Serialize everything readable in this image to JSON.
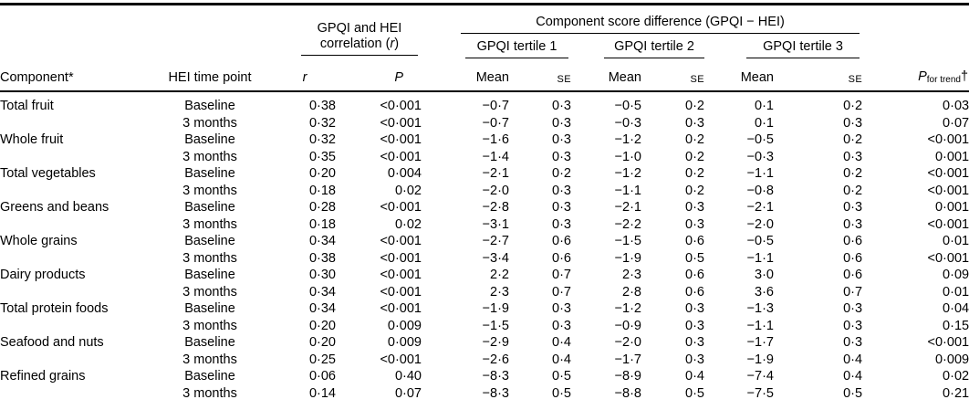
{
  "table": {
    "header": {
      "component": "Component*",
      "time_point": "HEI time point",
      "correlation_line1": "GPQI and HEI",
      "correlation_line2_pre": "correlation (",
      "correlation_r": "r",
      "correlation_line2_post": ")",
      "score_diff_group": "Component score difference (GPQI − HEI)",
      "tertile1": "GPQI tertile 1",
      "tertile2": "GPQI tertile 2",
      "tertile3": "GPQI tertile 3",
      "r": "r",
      "p": "P",
      "mean": "Mean",
      "se": "SE",
      "p_trend_main": "P",
      "p_trend_sub": "for trend",
      "p_trend_suffix": "†"
    },
    "columns": [
      "Component*",
      "HEI time point",
      "r",
      "P",
      "Tertile 1 Mean",
      "Tertile 1 SE",
      "Tertile 2 Mean",
      "Tertile 2 SE",
      "Tertile 3 Mean",
      "Tertile 3 SE",
      "P for trend"
    ],
    "rows": [
      [
        "Total fruit",
        "Baseline",
        "0·38",
        "<0·001",
        "−0·7",
        "0·3",
        "−0·5",
        "0·2",
        "0·1",
        "0·2",
        "0·03"
      ],
      [
        "",
        "3 months",
        "0·32",
        "<0·001",
        "−0·7",
        "0·3",
        "−0·3",
        "0·3",
        "0·1",
        "0·3",
        "0·07"
      ],
      [
        "Whole fruit",
        "Baseline",
        "0·32",
        "<0·001",
        "−1·6",
        "0·3",
        "−1·2",
        "0·2",
        "−0·5",
        "0·2",
        "<0·001"
      ],
      [
        "",
        "3 months",
        "0·35",
        "<0·001",
        "−1·4",
        "0·3",
        "−1·0",
        "0·2",
        "−0·3",
        "0·3",
        "0·001"
      ],
      [
        "Total vegetables",
        "Baseline",
        "0·20",
        "0·004",
        "−2·1",
        "0·2",
        "−1·2",
        "0·2",
        "−1·1",
        "0·2",
        "<0·001"
      ],
      [
        "",
        "3 months",
        "0·18",
        "0·02",
        "−2·0",
        "0·3",
        "−1·1",
        "0·2",
        "−0·8",
        "0·2",
        "<0·001"
      ],
      [
        "Greens and beans",
        "Baseline",
        "0·28",
        "<0·001",
        "−2·8",
        "0·3",
        "−2·1",
        "0·3",
        "−2·1",
        "0·3",
        "0·001"
      ],
      [
        "",
        "3 months",
        "0·18",
        "0·02",
        "−3·1",
        "0·3",
        "−2·2",
        "0·3",
        "−2·0",
        "0·3",
        "<0·001"
      ],
      [
        "Whole grains",
        "Baseline",
        "0·34",
        "<0·001",
        "−2·7",
        "0·6",
        "−1·5",
        "0·6",
        "−0·5",
        "0·6",
        "0·01"
      ],
      [
        "",
        "3 months",
        "0·38",
        "<0·001",
        "−3·4",
        "0·6",
        "−1·9",
        "0·5",
        "−1·1",
        "0·6",
        "<0·001"
      ],
      [
        "Dairy products",
        "Baseline",
        "0·30",
        "<0·001",
        "2·2",
        "0·7",
        "2·3",
        "0·6",
        "3·0",
        "0·6",
        "0·09"
      ],
      [
        "",
        "3 months",
        "0·34",
        "<0·001",
        "2·3",
        "0·7",
        "2·8",
        "0·6",
        "3·6",
        "0·7",
        "0·01"
      ],
      [
        "Total protein foods",
        "Baseline",
        "0·34",
        "<0·001",
        "−1·9",
        "0·3",
        "−1·2",
        "0·3",
        "−1·3",
        "0·3",
        "0·04"
      ],
      [
        "",
        "3 months",
        "0·20",
        "0·009",
        "−1·5",
        "0·3",
        "−0·9",
        "0·3",
        "−1·1",
        "0·3",
        "0·15"
      ],
      [
        "Seafood and nuts",
        "Baseline",
        "0·20",
        "0·009",
        "−2·9",
        "0·4",
        "−2·0",
        "0·3",
        "−1·7",
        "0·3",
        "<0·001"
      ],
      [
        "",
        "3 months",
        "0·25",
        "<0·001",
        "−2·6",
        "0·4",
        "−1·7",
        "0·3",
        "−1·9",
        "0·4",
        "0·009"
      ],
      [
        "Refined grains",
        "Baseline",
        "0·06",
        "0·40",
        "−8·3",
        "0·5",
        "−8·9",
        "0·4",
        "−7·4",
        "0·4",
        "0·02"
      ],
      [
        "",
        "3 months",
        "0·14",
        "0·07",
        "−8·3",
        "0·5",
        "−8·8",
        "0·5",
        "−7·5",
        "0·5",
        "0·21"
      ]
    ]
  }
}
